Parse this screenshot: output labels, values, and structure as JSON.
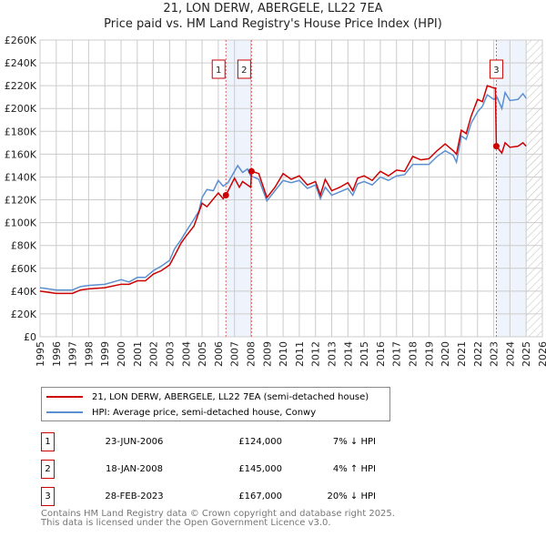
{
  "chart_data": {
    "type": "line",
    "title": "21, LON DERW, ABERGELE, LL22 7EA",
    "subtitle": "Price paid vs. HM Land Registry's House Price Index (HPI)",
    "xlim": [
      1995,
      2026
    ],
    "ylim": [
      0,
      260
    ],
    "y_ticks": [
      "£0",
      "£20K",
      "£40K",
      "£60K",
      "£80K",
      "£100K",
      "£120K",
      "£140K",
      "£160K",
      "£180K",
      "£200K",
      "£220K",
      "£240K",
      "£260K"
    ],
    "x_ticks": [
      "1995",
      "1996",
      "1997",
      "1998",
      "1999",
      "2000",
      "2001",
      "2002",
      "2003",
      "2004",
      "2005",
      "2006",
      "2007",
      "2008",
      "2009",
      "2010",
      "2011",
      "2012",
      "2013",
      "2014",
      "2015",
      "2016",
      "2017",
      "2018",
      "2019",
      "2020",
      "2021",
      "2022",
      "2023",
      "2024",
      "2025",
      "2026"
    ],
    "grid": true,
    "shaded_ranges": [
      [
        2006.47,
        2008.05
      ],
      [
        2023.16,
        2025.0
      ]
    ],
    "hatched_from": 2025.0,
    "series": [
      {
        "name": "21, LON DERW, ABERGELE, LL22 7EA (semi-detached house)",
        "color": "#cc0000",
        "points": [
          [
            1995,
            40
          ],
          [
            1996,
            38
          ],
          [
            1997,
            38
          ],
          [
            1997.5,
            41
          ],
          [
            1998,
            42
          ],
          [
            1999,
            43
          ],
          [
            2000,
            46
          ],
          [
            2000.5,
            46
          ],
          [
            2001,
            49
          ],
          [
            2001.5,
            49
          ],
          [
            2002,
            55
          ],
          [
            2002.5,
            58
          ],
          [
            2003,
            63
          ],
          [
            2003.3,
            71
          ],
          [
            2003.7,
            82
          ],
          [
            2004,
            88
          ],
          [
            2004.5,
            97
          ],
          [
            2004.8,
            109
          ],
          [
            2005,
            117
          ],
          [
            2005.3,
            114
          ],
          [
            2006,
            126
          ],
          [
            2006.3,
            121
          ],
          [
            2006.47,
            124
          ],
          [
            2007,
            139
          ],
          [
            2007.3,
            131
          ],
          [
            2007.5,
            136
          ],
          [
            2008,
            131
          ],
          [
            2008.05,
            145
          ],
          [
            2008.5,
            143
          ],
          [
            2009,
            122
          ],
          [
            2009.5,
            131
          ],
          [
            2010,
            143
          ],
          [
            2010.5,
            138
          ],
          [
            2011,
            141
          ],
          [
            2011.5,
            133
          ],
          [
            2012,
            136
          ],
          [
            2012.3,
            124
          ],
          [
            2012.6,
            138
          ],
          [
            2013,
            128
          ],
          [
            2013.5,
            131
          ],
          [
            2014,
            135
          ],
          [
            2014.3,
            128
          ],
          [
            2014.6,
            139
          ],
          [
            2015,
            141
          ],
          [
            2015.5,
            137
          ],
          [
            2016,
            145
          ],
          [
            2016.5,
            141
          ],
          [
            2017,
            146
          ],
          [
            2017.5,
            145
          ],
          [
            2018,
            158
          ],
          [
            2018.5,
            155
          ],
          [
            2019,
            156
          ],
          [
            2019.5,
            163
          ],
          [
            2020,
            169
          ],
          [
            2020.5,
            163
          ],
          [
            2020.7,
            160
          ],
          [
            2021,
            181
          ],
          [
            2021.3,
            178
          ],
          [
            2021.6,
            193
          ],
          [
            2022,
            208
          ],
          [
            2022.3,
            206
          ],
          [
            2022.6,
            220
          ],
          [
            2023,
            218
          ],
          [
            2023.1,
            218
          ],
          [
            2023.16,
            167
          ],
          [
            2023.5,
            161
          ],
          [
            2023.7,
            170
          ],
          [
            2024,
            166
          ],
          [
            2024.5,
            167
          ],
          [
            2024.8,
            170
          ],
          [
            2025,
            167
          ]
        ]
      },
      {
        "name": "HPI: Average price, semi-detached house, Conwy",
        "color": "#5b8fd0",
        "points": [
          [
            1995,
            43
          ],
          [
            1996,
            41
          ],
          [
            1997,
            41
          ],
          [
            1997.5,
            44
          ],
          [
            1998,
            45
          ],
          [
            1999,
            46
          ],
          [
            2000,
            50
          ],
          [
            2000.5,
            48
          ],
          [
            2001,
            52
          ],
          [
            2001.5,
            52
          ],
          [
            2002,
            58
          ],
          [
            2002.5,
            62
          ],
          [
            2003,
            67
          ],
          [
            2003.3,
            77
          ],
          [
            2003.7,
            85
          ],
          [
            2004,
            92
          ],
          [
            2004.5,
            103
          ],
          [
            2004.8,
            110
          ],
          [
            2005,
            122
          ],
          [
            2005.3,
            129
          ],
          [
            2005.7,
            128
          ],
          [
            2006,
            137
          ],
          [
            2006.3,
            132
          ],
          [
            2006.6,
            135
          ],
          [
            2007,
            145
          ],
          [
            2007.2,
            150
          ],
          [
            2007.5,
            144
          ],
          [
            2007.8,
            147
          ],
          [
            2008,
            141
          ],
          [
            2008.5,
            138
          ],
          [
            2009,
            119
          ],
          [
            2009.5,
            128
          ],
          [
            2010,
            137
          ],
          [
            2010.5,
            135
          ],
          [
            2011,
            137
          ],
          [
            2011.5,
            130
          ],
          [
            2012,
            133
          ],
          [
            2012.3,
            121
          ],
          [
            2012.6,
            131
          ],
          [
            2013,
            124
          ],
          [
            2013.5,
            127
          ],
          [
            2014,
            130
          ],
          [
            2014.3,
            124
          ],
          [
            2014.6,
            134
          ],
          [
            2015,
            136
          ],
          [
            2015.5,
            133
          ],
          [
            2016,
            140
          ],
          [
            2016.5,
            137
          ],
          [
            2017,
            141
          ],
          [
            2017.5,
            142
          ],
          [
            2018,
            151
          ],
          [
            2018.5,
            151
          ],
          [
            2019,
            151
          ],
          [
            2019.5,
            158
          ],
          [
            2020,
            163
          ],
          [
            2020.5,
            159
          ],
          [
            2020.7,
            153
          ],
          [
            2021,
            176
          ],
          [
            2021.3,
            173
          ],
          [
            2021.6,
            187
          ],
          [
            2022,
            197
          ],
          [
            2022.3,
            202
          ],
          [
            2022.6,
            212
          ],
          [
            2023,
            208
          ],
          [
            2023.2,
            210
          ],
          [
            2023.5,
            200
          ],
          [
            2023.7,
            214
          ],
          [
            2024,
            207
          ],
          [
            2024.5,
            208
          ],
          [
            2024.8,
            213
          ],
          [
            2025,
            209
          ]
        ]
      }
    ],
    "sales": [
      {
        "label": "1",
        "x": 2006.47,
        "y": 124
      },
      {
        "label": "2",
        "x": 2008.05,
        "y": 145
      },
      {
        "label": "3",
        "x": 2023.16,
        "y": 167
      }
    ]
  },
  "legend": {
    "property": "21, LON DERW, ABERGELE, LL22 7EA (semi-detached house)",
    "hpi": "HPI: Average price, semi-detached house, Conwy"
  },
  "transactions": [
    {
      "num": "1",
      "date": "23-JUN-2006",
      "price": "£124,000",
      "hpi": "7% ↓ HPI"
    },
    {
      "num": "2",
      "date": "18-JAN-2008",
      "price": "£145,000",
      "hpi": "4% ↑ HPI"
    },
    {
      "num": "3",
      "date": "28-FEB-2023",
      "price": "£167,000",
      "hpi": "20% ↓ HPI"
    }
  ],
  "footer": {
    "line1": "Contains HM Land Registry data © Crown copyright and database right 2025.",
    "line2": "This data is licensed under the Open Government Licence v3.0."
  }
}
